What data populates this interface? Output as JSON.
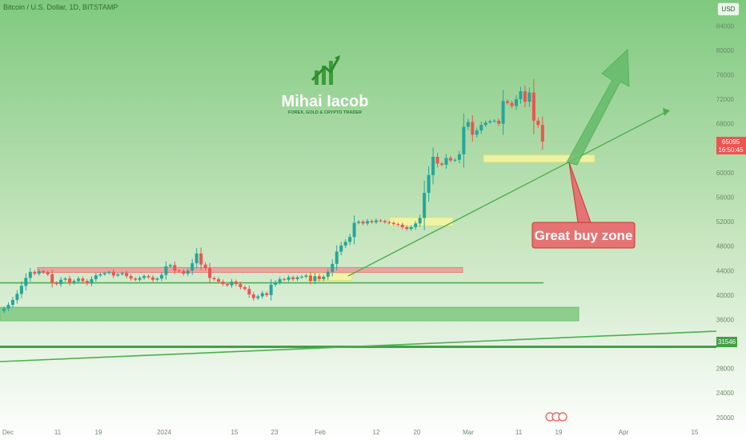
{
  "title": "Bitcoin / U.S. Dollar, 1D, BITSTAMP",
  "currency_button": "USD",
  "logo": {
    "name": "Mihai Iacob",
    "tagline": "FOREX, GOLD & CRYPTO TRADER"
  },
  "annotation": "Great buy zone",
  "last_price": {
    "value": "65095",
    "countdown": "16:50:45"
  },
  "level_label": "31546",
  "colors": {
    "background_top": "#7fc97f",
    "background_bottom": "#ffffff",
    "up_candle": "#26a69a",
    "down_candle": "#ef5350",
    "line": "#4caf50",
    "buy_zone_fill": "#f7f7a0",
    "resistance_fill": "#ef9a9a",
    "support_fill": "#7fc97f"
  },
  "chart_data": {
    "type": "candlestick",
    "title": "Bitcoin / U.S. Dollar, 1D, BITSTAMP",
    "x_tick_labels": [
      "Dec",
      "11",
      "19",
      "2024",
      "15",
      "23",
      "Feb",
      "12",
      "20",
      "Mar",
      "11",
      "19",
      "Apr",
      "15"
    ],
    "y_tick_labels": [
      "20000",
      "24000",
      "28000",
      "32000",
      "36000",
      "40000",
      "44000",
      "48000",
      "52000",
      "56000",
      "60000",
      "64000",
      "68000",
      "72000",
      "76000",
      "80000",
      "84000"
    ],
    "ylim": [
      18800,
      86000
    ],
    "closes": [
      37800,
      38400,
      39200,
      40200,
      41500,
      42800,
      43800,
      43500,
      43900,
      43700,
      43400,
      42000,
      41800,
      42500,
      42700,
      42000,
      42300,
      42700,
      42300,
      41900,
      42600,
      43200,
      43400,
      43600,
      43800,
      43200,
      43400,
      43600,
      43100,
      42700,
      42500,
      42800,
      43100,
      42900,
      42500,
      42700,
      43300,
      44700,
      44900,
      44000,
      43900,
      43500,
      44000,
      45200,
      46800,
      45000,
      44400,
      42800,
      42600,
      42200,
      41800,
      41600,
      42200,
      41800,
      41300,
      41000,
      40100,
      39500,
      39800,
      40300,
      40000,
      41700,
      42100,
      42600,
      42500,
      42900,
      42600,
      42900,
      43000,
      43200,
      42300,
      43100,
      42600,
      43000,
      43800,
      45100,
      47100,
      48100,
      48700,
      49500,
      51800,
      52000,
      51700,
      52100,
      51900,
      52200,
      52100,
      51900,
      51800,
      51600,
      51500,
      51100,
      50800,
      51100,
      51700,
      52600,
      56700,
      59600,
      62600,
      61500,
      61300,
      62400,
      62000,
      62100,
      63000,
      67500,
      68300,
      66200,
      66900,
      67800,
      68200,
      68400,
      68500,
      68000,
      71700,
      71400,
      70900,
      72000,
      73300,
      71600,
      73100,
      68500,
      67800,
      65095
    ],
    "last_price": 65095,
    "resistance_zone": [
      43700,
      44500
    ],
    "support_zone": [
      35800,
      38000
    ],
    "buy_zone_lower": [
      51300,
      52700
    ],
    "buy_zone_upper": [
      61700,
      62900
    ],
    "early_buy_zone": [
      42400,
      43600
    ],
    "horizontal_support_1": 42000,
    "horizontal_support_2": 31546,
    "annotation": "Great buy zone",
    "grid": false,
    "legend": "none"
  }
}
